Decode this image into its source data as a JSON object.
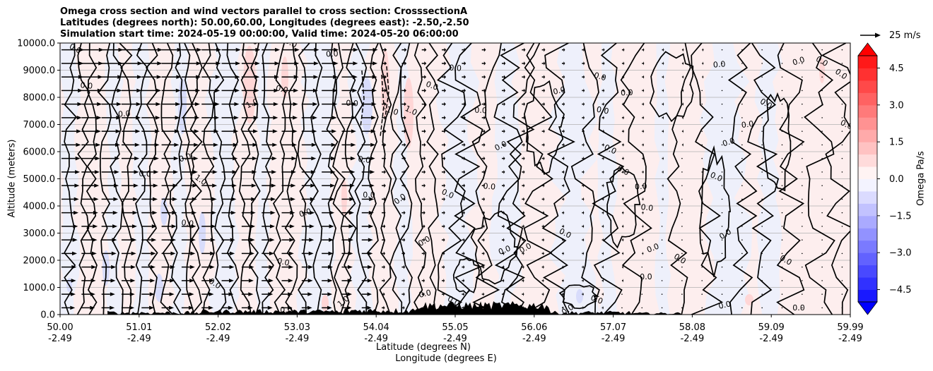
{
  "chart_data": {
    "type": "heatmap",
    "subtype": "vertical cross section with contours and wind vectors",
    "title_lines": [
      "Omega cross section and wind vectors parallel to cross section: CrosssectionA",
      "Latitudes (degrees north): 50.00,60.00, Longitudes (degrees east): -2.50,-2.50",
      "Simulation start time: 2024-05-19 00:00:00, Valid time: 2024-05-20 06:00:00"
    ],
    "ylabel": "Altitude (meters)",
    "xlabel_line1": "Latitude (degrees N)",
    "xlabel_line2": "Longitude (degrees E)",
    "xlim": [
      50.0,
      59.99
    ],
    "ylim": [
      0,
      10000
    ],
    "y_ticks": [
      "0.0",
      "1000.0",
      "2000.0",
      "3000.0",
      "4000.0",
      "5000.0",
      "6000.0",
      "7000.0",
      "8000.0",
      "9000.0",
      "10000.0"
    ],
    "x_ticks_lat": [
      "50.00",
      "51.01",
      "52.02",
      "53.03",
      "54.04",
      "55.05",
      "56.06",
      "57.07",
      "58.08",
      "59.09",
      "59.99"
    ],
    "x_ticks_lon": [
      "-2.49",
      "-2.49",
      "-2.49",
      "-2.49",
      "-2.49",
      "-2.49",
      "-2.49",
      "-2.49",
      "-2.49",
      "-2.49",
      "-2.49"
    ],
    "horizontal_grid": true,
    "contour_labels": [
      "0.0",
      "1.0",
      "-1.0"
    ],
    "colorbar": {
      "label": "Omega Pa/s",
      "range": [
        -5.0,
        5.0
      ],
      "ticks": [
        "4.5",
        "3.0",
        "1.5",
        "0.0",
        "−1.5",
        "−3.0",
        "−4.5"
      ],
      "colormap": "bwr",
      "extend": "both"
    },
    "reference_vector": {
      "label": "25 m/s",
      "speed": 25
    },
    "colors": {
      "negative": "#0000ff",
      "positive": "#ff0000",
      "terrain": "#000000"
    }
  }
}
